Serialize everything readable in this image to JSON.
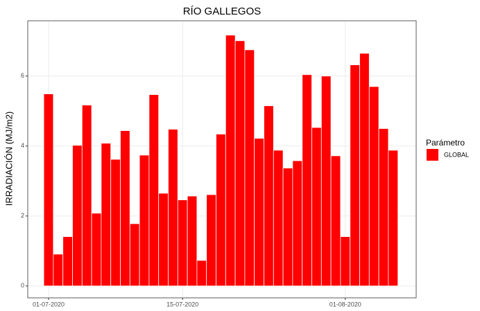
{
  "chart_data": {
    "type": "bar",
    "title": "RÍO GALLEGOS",
    "y_label": "IRRADIACIÓN (MJ/m2)",
    "x": [
      "01-07-2020",
      "02-07-2020",
      "03-07-2020",
      "04-07-2020",
      "05-07-2020",
      "06-07-2020",
      "07-07-2020",
      "08-07-2020",
      "09-07-2020",
      "10-07-2020",
      "11-07-2020",
      "12-07-2020",
      "13-07-2020",
      "14-07-2020",
      "15-07-2020",
      "16-07-2020",
      "17-07-2020",
      "18-07-2020",
      "19-07-2020",
      "20-07-2020",
      "21-07-2020",
      "22-07-2020",
      "23-07-2020",
      "24-07-2020",
      "25-07-2020",
      "26-07-2020",
      "27-07-2020",
      "28-07-2020",
      "29-07-2020",
      "30-07-2020",
      "31-07-2020",
      "01-08-2020",
      "02-08-2020",
      "03-08-2020",
      "04-08-2020",
      "05-08-2020",
      "06-08-2020"
    ],
    "series": [
      {
        "name": "GLOBAL",
        "color": "#ff0000",
        "values": [
          5.49,
          0.91,
          1.41,
          4.02,
          5.17,
          2.08,
          4.08,
          3.62,
          4.44,
          1.78,
          3.74,
          5.47,
          2.65,
          4.48,
          2.46,
          2.57,
          0.73,
          2.61,
          4.34,
          7.17,
          7.01,
          6.75,
          4.22,
          5.15,
          3.88,
          3.37,
          3.58,
          6.04,
          4.53,
          6.0,
          3.72,
          1.41,
          6.32,
          6.65,
          5.7,
          4.5,
          3.88
        ]
      }
    ],
    "xticks": [
      "01-07-2020",
      "15-07-2020",
      "01-08-2020"
    ],
    "ylim": [
      -0.34,
      7.58
    ],
    "yticks": [
      0,
      2,
      4,
      6
    ],
    "grid": true,
    "legend": {
      "title": "Parámetro",
      "position": "right"
    }
  }
}
